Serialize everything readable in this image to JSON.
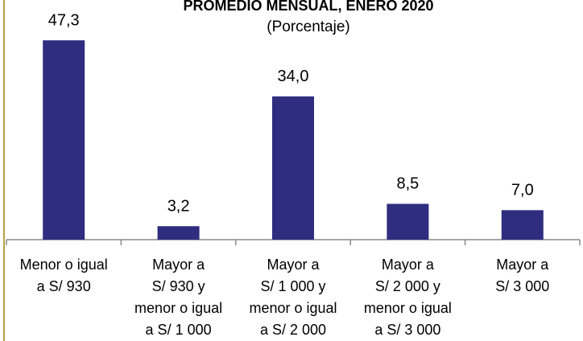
{
  "chart_data": {
    "type": "bar",
    "title": "PROMEDIO MENSUAL, ENERO 2020",
    "subtitle": "(Porcentaje)",
    "categories": [
      "Menor o igual\na S/ 930",
      "Mayor a\nS/ 930 y\nmenor o igual\na S/ 1 000",
      "Mayor a\nS/ 1 000 y\nmenor o igual\na S/ 2 000",
      "Mayor a\nS/ 2 000 y\nmenor o igual\na S/ 3 000",
      "Mayor a\nS/ 3 000"
    ],
    "values": [
      47.3,
      3.2,
      34.0,
      8.5,
      7.0
    ],
    "value_labels": [
      "47,3",
      "3,2",
      "34,0",
      "8,5",
      "7,0"
    ],
    "color": "#2e2d7f",
    "ylim": [
      0,
      50
    ]
  }
}
